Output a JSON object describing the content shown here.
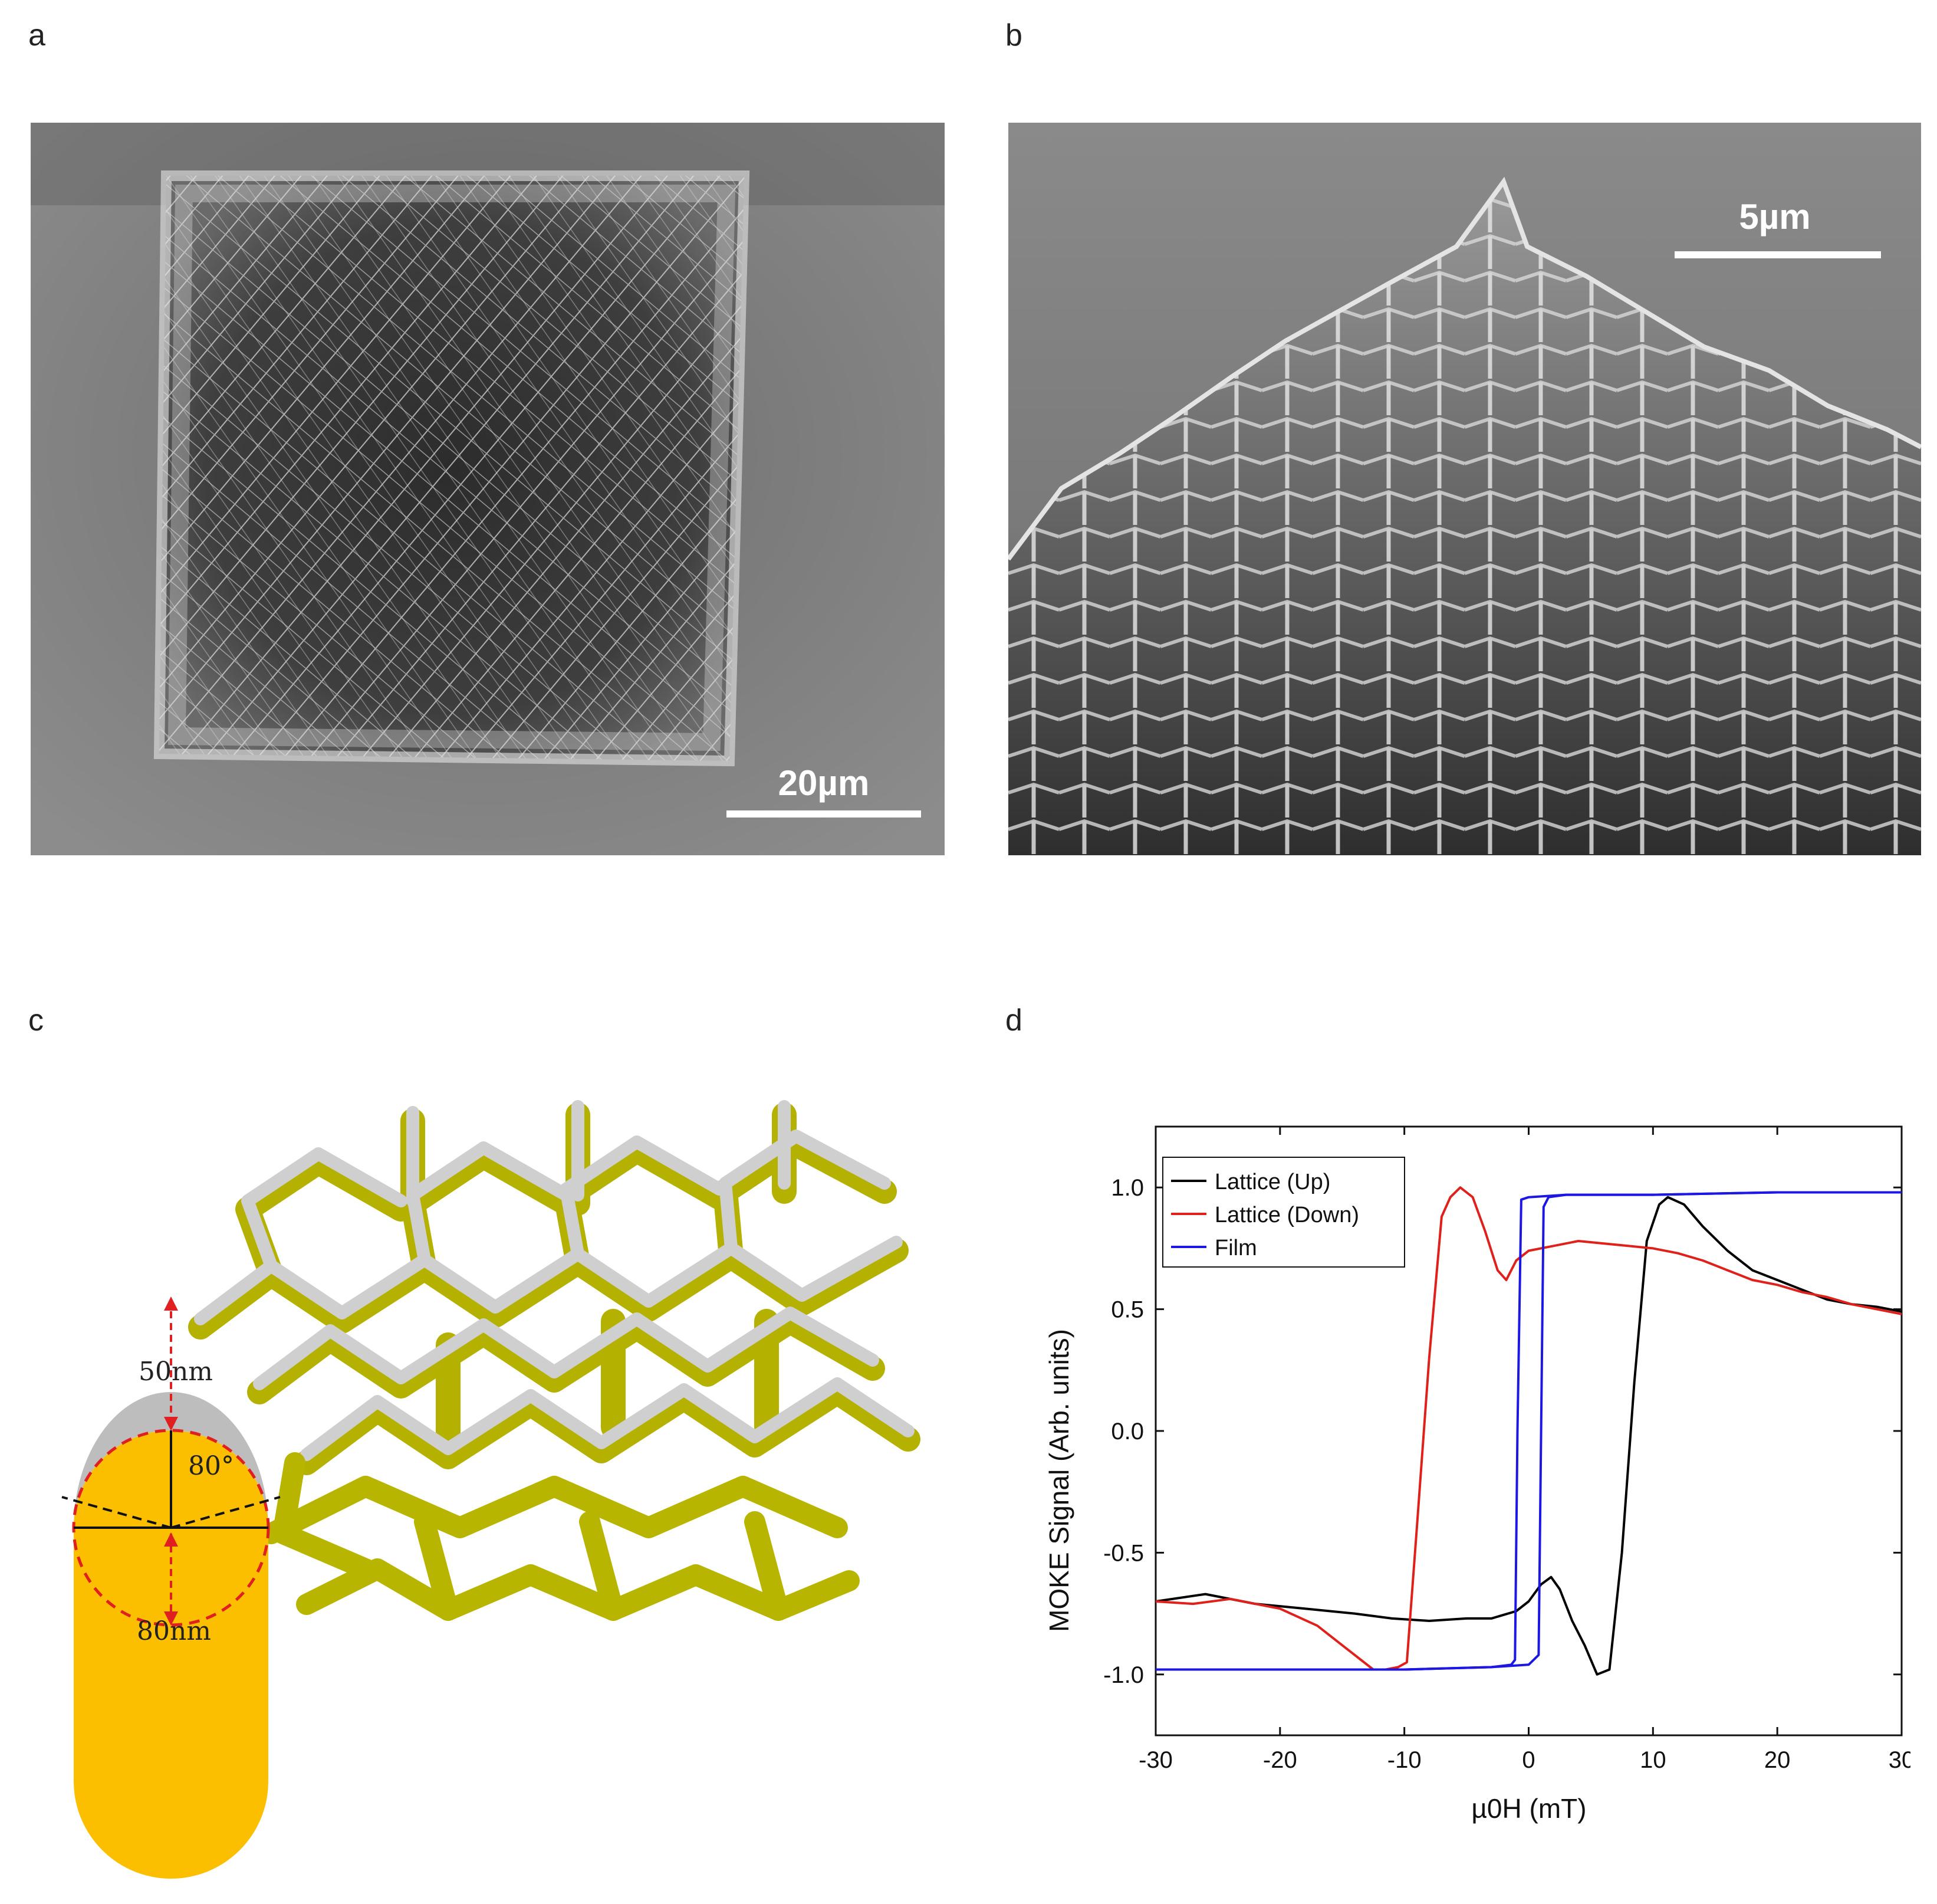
{
  "figure": {
    "panel_labels": [
      "a",
      "b",
      "c",
      "d"
    ],
    "panel_a": {
      "image": "sem-square-lattice",
      "scale_bar": "20µm"
    },
    "panel_b": {
      "image": "sem-lattice-side-view",
      "scale_bar": "5µm"
    },
    "panel_c": {
      "image": "3d-lattice-render",
      "cross_section": {
        "shell_thickness": "50nm",
        "core_diameter": "80nm",
        "angle": "80°"
      }
    }
  },
  "chart_data": {
    "type": "line",
    "xlabel": "µ0H (mT)",
    "ylabel": "MOKE Signal (Arb. units)",
    "xlim": [
      -30,
      30
    ],
    "ylim": [
      -1.25,
      1.25
    ],
    "xticks": [
      -30,
      -20,
      -10,
      0,
      10,
      20,
      30
    ],
    "xtick_labels": [
      "-30",
      "-20",
      "-10",
      "0",
      "10",
      "20",
      "30"
    ],
    "yticks": [
      -1.0,
      -0.5,
      0.0,
      0.5,
      1.0
    ],
    "ytick_labels": [
      "-1.0",
      "-0.5",
      "0.0",
      "0.5",
      "1.0"
    ],
    "legend_position": "top-left",
    "series": [
      {
        "name": "Lattice (Up)",
        "color": "#000000",
        "x": [
          -30,
          -26,
          -22,
          -18,
          -14,
          -11,
          -8,
          -5,
          -3,
          -1,
          0,
          1,
          1.8,
          2.5,
          3.5,
          4.5,
          5.5,
          6.5,
          7.5,
          8.5,
          9.5,
          10.5,
          11.2,
          12.5,
          14,
          16,
          18,
          20,
          22,
          24,
          26,
          28,
          30
        ],
        "y": [
          -0.7,
          -0.67,
          -0.71,
          -0.73,
          -0.75,
          -0.77,
          -0.78,
          -0.77,
          -0.77,
          -0.74,
          -0.7,
          -0.63,
          -0.6,
          -0.65,
          -0.78,
          -0.88,
          -1.0,
          -0.98,
          -0.5,
          0.2,
          0.78,
          0.93,
          0.96,
          0.93,
          0.84,
          0.74,
          0.66,
          0.62,
          0.58,
          0.54,
          0.52,
          0.51,
          0.49
        ]
      },
      {
        "name": "Lattice (Down)",
        "color": "#e0201b",
        "x": [
          -30,
          -27,
          -24,
          -20,
          -17,
          -15,
          -13.5,
          -12.5,
          -11.5,
          -10.5,
          -9.8,
          -9,
          -8,
          -7,
          -6.3,
          -5.5,
          -4.5,
          -3.5,
          -2.5,
          -1.8,
          -1,
          0,
          2,
          4,
          6,
          8,
          10,
          12,
          14,
          16,
          18,
          20,
          22,
          24,
          26,
          28,
          30
        ],
        "y": [
          -0.7,
          -0.71,
          -0.69,
          -0.73,
          -0.8,
          -0.88,
          -0.94,
          -0.98,
          -0.98,
          -0.97,
          -0.95,
          -0.4,
          0.3,
          0.88,
          0.96,
          1.0,
          0.96,
          0.82,
          0.66,
          0.62,
          0.7,
          0.74,
          0.76,
          0.78,
          0.77,
          0.76,
          0.75,
          0.73,
          0.7,
          0.66,
          0.62,
          0.6,
          0.57,
          0.55,
          0.52,
          0.5,
          0.48
        ]
      },
      {
        "name": "Film (Up)",
        "color": "#1d17e3",
        "x": [
          -30,
          -20,
          -10,
          -3,
          0,
          0.8,
          1.0,
          1.2,
          1.6,
          3,
          10,
          20,
          30
        ],
        "y": [
          -0.98,
          -0.98,
          -0.98,
          -0.97,
          -0.96,
          -0.92,
          0.0,
          0.92,
          0.96,
          0.97,
          0.97,
          0.98,
          0.98
        ]
      },
      {
        "name": "Film (Down)",
        "color": "#1d17e3",
        "x": [
          30,
          20,
          10,
          3,
          0,
          -0.6,
          -0.9,
          -1.1,
          -1.4,
          -3,
          -10,
          -20,
          -30
        ],
        "y": [
          0.98,
          0.98,
          0.97,
          0.97,
          0.96,
          0.95,
          0.0,
          -0.94,
          -0.96,
          -0.97,
          -0.98,
          -0.98,
          -0.98
        ]
      }
    ],
    "legend": [
      {
        "label": "Lattice (Up)",
        "color": "#000000"
      },
      {
        "label": "Lattice (Down)",
        "color": "#e0201b"
      },
      {
        "label": "Film",
        "color": "#1d17e3"
      }
    ]
  }
}
